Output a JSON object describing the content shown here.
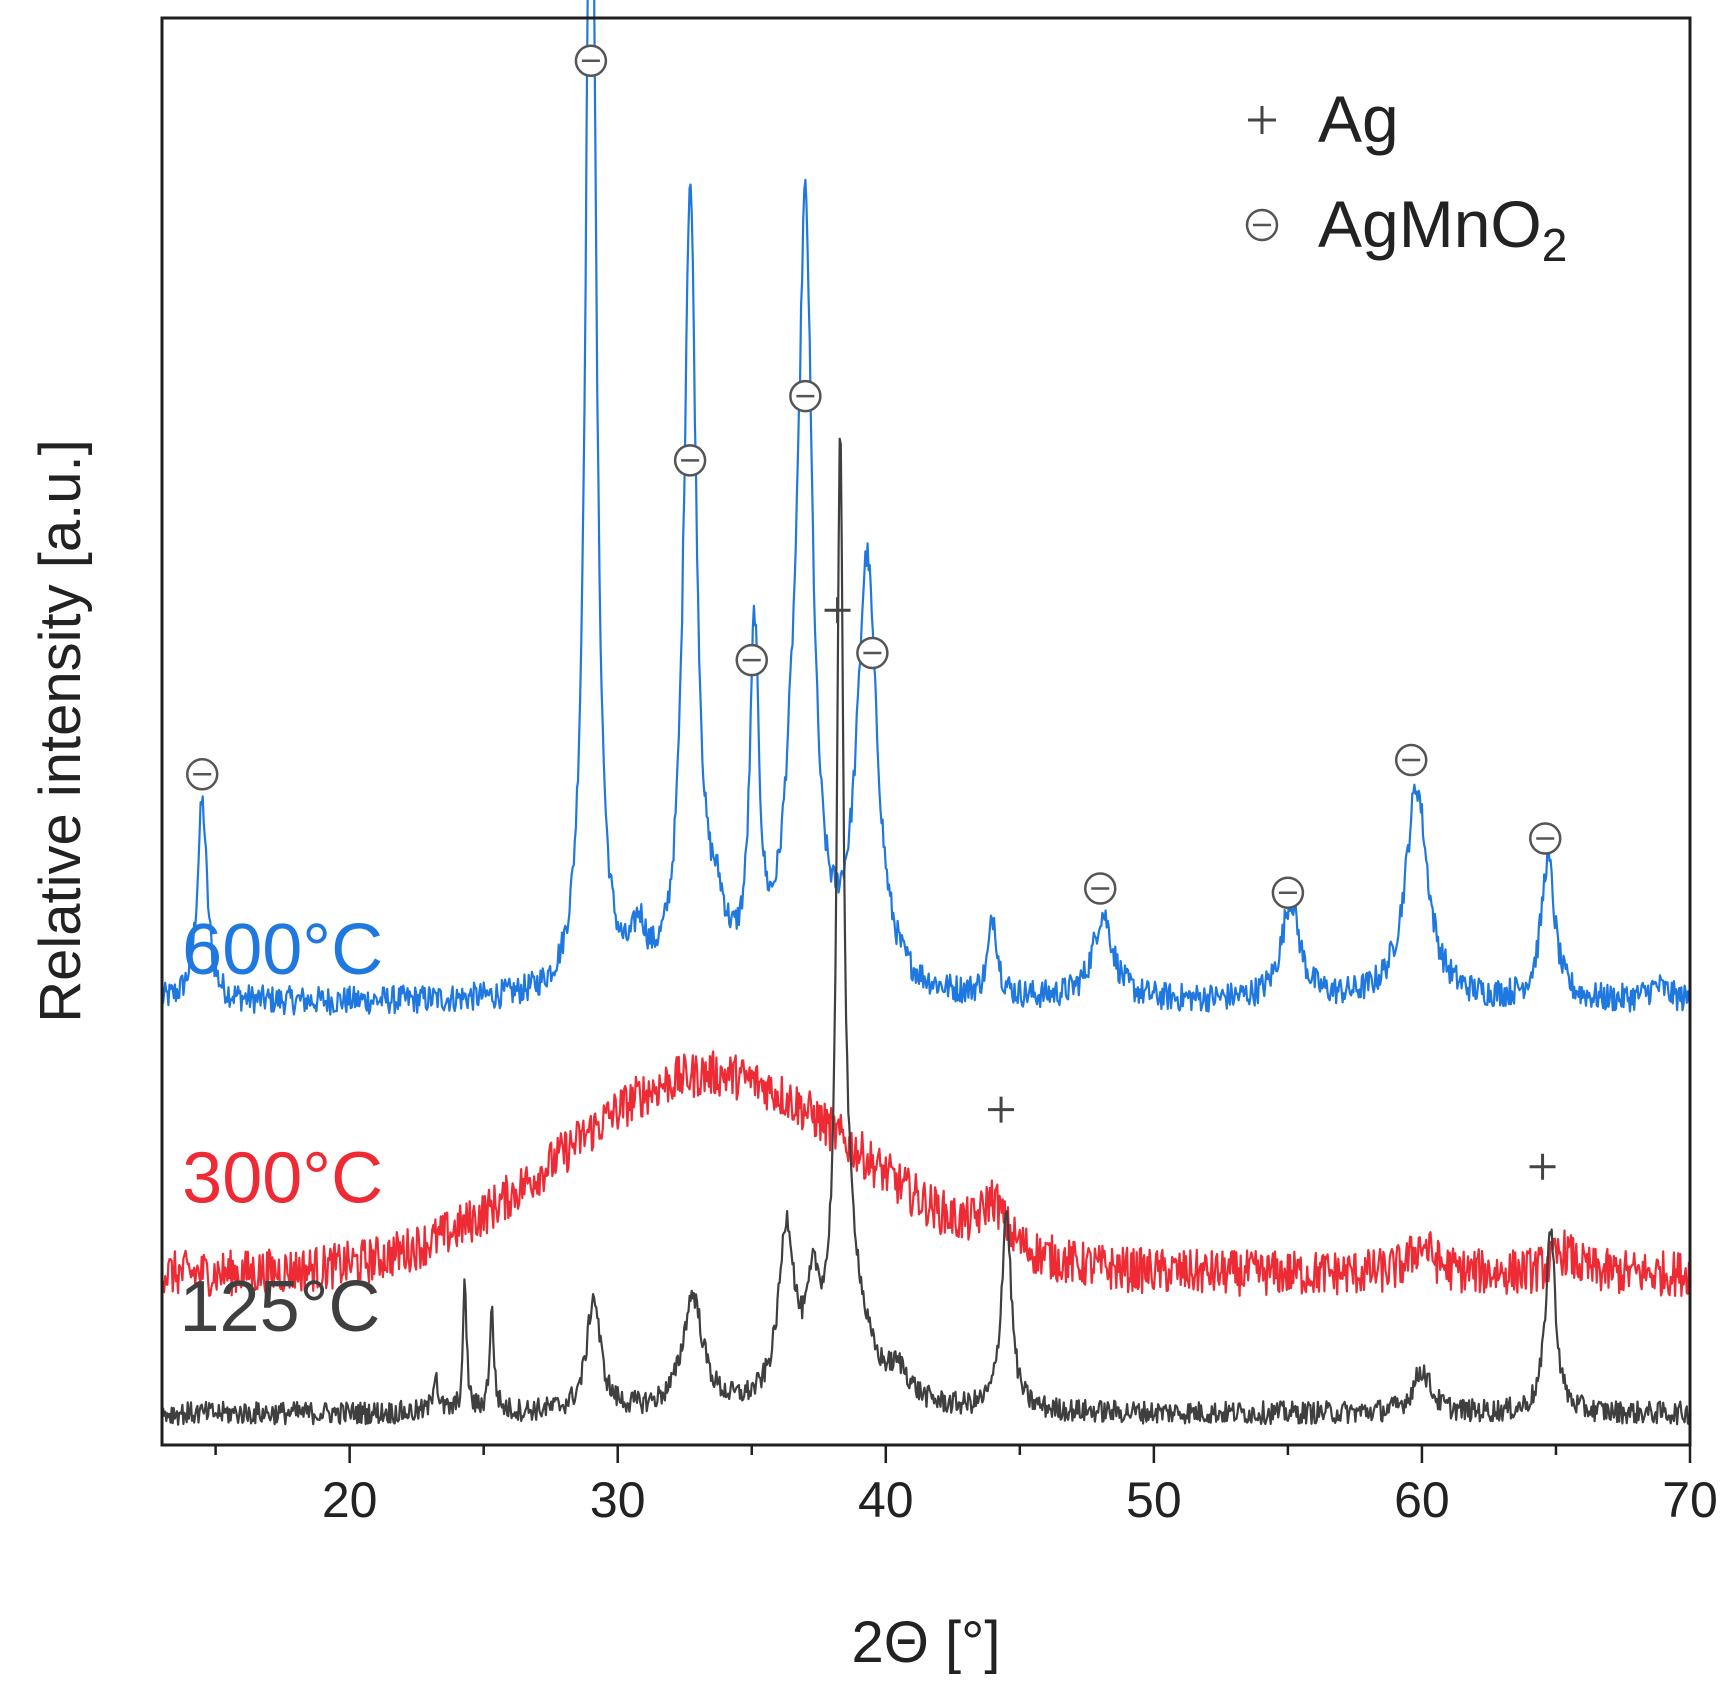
{
  "chart_data": {
    "type": "line",
    "title": "",
    "xlabel": "2Θ [°]",
    "ylabel": "Relative intensity [a.u.]",
    "xlim": [
      13,
      70
    ],
    "ylim": [
      0,
      100
    ],
    "xticks": [
      20,
      30,
      40,
      50,
      60,
      70
    ],
    "grid": false,
    "legend": {
      "placement": "top-right",
      "entries": [
        {
          "symbol": "+",
          "label": "Ag",
          "sub": ""
        },
        {
          "symbol": "⊖",
          "label": "AgMnO",
          "sub": "2"
        }
      ]
    },
    "series": [
      {
        "name": "600°C",
        "color": "#1e78e0",
        "baseline": 31,
        "noise": 1.0,
        "peaks": [
          [
            14.5,
            14,
            0.22
          ],
          [
            29.0,
            92,
            0.22
          ],
          [
            30.8,
            3.5,
            0.3
          ],
          [
            32.7,
            56,
            0.28
          ],
          [
            33.7,
            4,
            0.4
          ],
          [
            35.1,
            24,
            0.2
          ],
          [
            36.5,
            8,
            0.4
          ],
          [
            37.0,
            52,
            0.32
          ],
          [
            39.3,
            30,
            0.45
          ],
          [
            44.0,
            5.5,
            0.2
          ],
          [
            48.1,
            6,
            0.45
          ],
          [
            55.1,
            7,
            0.4
          ],
          [
            59.8,
            15,
            0.5
          ],
          [
            64.7,
            10,
            0.3
          ],
          [
            68.8,
            1,
            0.5
          ]
        ],
        "label_x": 17.5,
        "label_y": 33
      },
      {
        "name": "300°C",
        "color": "#ee2a34",
        "baseline": 12,
        "noise": 1.6,
        "hump": [
          33.5,
          14,
          5.5
        ],
        "peaks": [
          [
            44.0,
            3,
            0.5
          ],
          [
            60.0,
            2,
            0.5
          ],
          [
            65.3,
            1.5,
            0.5
          ]
        ],
        "label_x": 17.5,
        "label_y": 17
      },
      {
        "name": "125°C",
        "color": "#3f3f3f",
        "baseline": 2.2,
        "noise": 0.8,
        "peaks": [
          [
            23.2,
            3,
            0.1
          ],
          [
            24.3,
            9,
            0.08
          ],
          [
            25.3,
            7,
            0.1
          ],
          [
            29.1,
            8,
            0.3
          ],
          [
            32.8,
            8,
            0.45
          ],
          [
            36.3,
            12,
            0.35
          ],
          [
            37.3,
            6,
            0.3
          ],
          [
            38.3,
            60,
            0.14
          ],
          [
            38.6,
            10,
            0.7
          ],
          [
            40.5,
            2,
            0.5
          ],
          [
            44.5,
            14,
            0.22
          ],
          [
            60.0,
            3,
            0.4
          ],
          [
            64.8,
            13,
            0.22
          ]
        ],
        "label_x": 17.4,
        "label_y": 8
      }
    ],
    "peak_markers": [
      {
        "symbol": "⊖",
        "phase": "AgMnO2",
        "x": 14.5,
        "y": 47
      },
      {
        "symbol": "⊖",
        "phase": "AgMnO2",
        "x": 29.0,
        "y": 97
      },
      {
        "symbol": "⊖",
        "phase": "AgMnO2",
        "x": 32.7,
        "y": 69
      },
      {
        "symbol": "⊖",
        "phase": "AgMnO2",
        "x": 35.0,
        "y": 55
      },
      {
        "symbol": "⊖",
        "phase": "AgMnO2",
        "x": 37.0,
        "y": 73.5
      },
      {
        "symbol": "⊖",
        "phase": "AgMnO2",
        "x": 39.5,
        "y": 55.5
      },
      {
        "symbol": "⊖",
        "phase": "AgMnO2",
        "x": 48.0,
        "y": 39
      },
      {
        "symbol": "⊖",
        "phase": "AgMnO2",
        "x": 55.0,
        "y": 38.7
      },
      {
        "symbol": "⊖",
        "phase": "AgMnO2",
        "x": 59.6,
        "y": 48
      },
      {
        "symbol": "⊖",
        "phase": "AgMnO2",
        "x": 64.6,
        "y": 42.5
      },
      {
        "symbol": "+",
        "phase": "Ag",
        "x": 38.2,
        "y": 58.5
      },
      {
        "symbol": "+",
        "phase": "Ag",
        "x": 44.3,
        "y": 23.5
      },
      {
        "symbol": "+",
        "phase": "Ag",
        "x": 64.5,
        "y": 19.5
      }
    ]
  }
}
